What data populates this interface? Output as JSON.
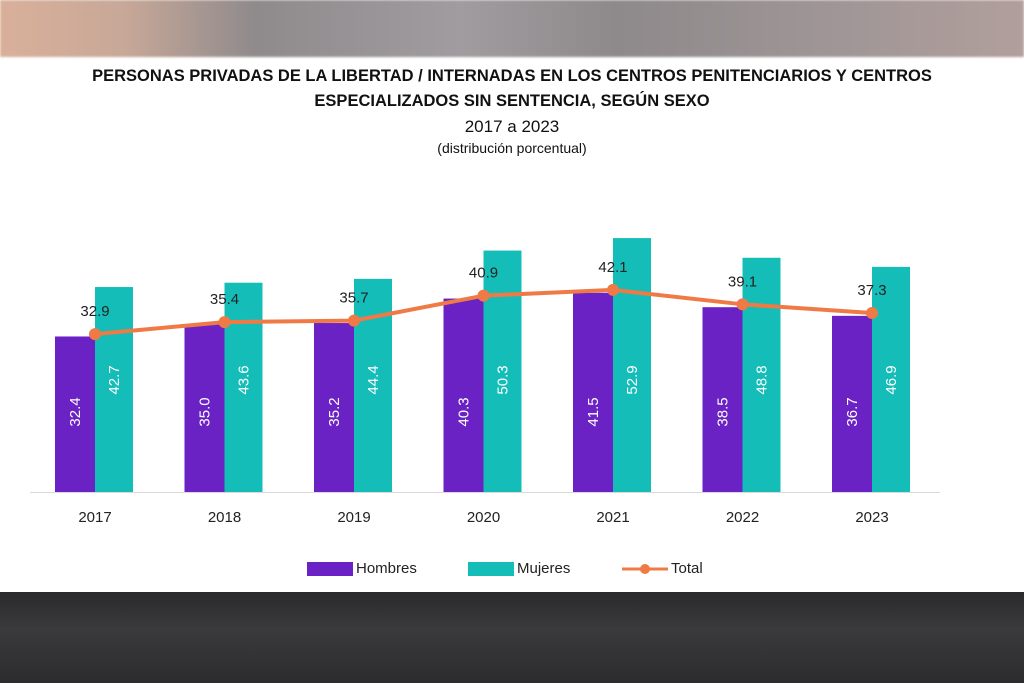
{
  "title": "PERSONAS PRIVADAS DE LA LIBERTAD / INTERNADAS EN LOS CENTROS PENITENCIARIOS Y CENTROS ESPECIALIZADOS SIN SENTENCIA, SEGÚN SEXO",
  "title_line1": "PERSONAS PRIVADAS DE LA LIBERTAD / INTERNADAS EN LOS CENTROS PENITENCIARIOS Y CENTROS",
  "title_line2": "ESPECIALIZADOS SIN SENTENCIA, SEGÚN SEXO",
  "subtitle": "2017 a 2023",
  "unit_note": "(distribución porcentual)",
  "chart_data": {
    "type": "bar",
    "categories": [
      "2017",
      "2018",
      "2019",
      "2020",
      "2021",
      "2022",
      "2023"
    ],
    "series": [
      {
        "name": "Hombres",
        "type": "bar",
        "color": "#6a22c4",
        "values": [
          32.4,
          35.0,
          35.2,
          40.3,
          41.5,
          38.5,
          36.7
        ]
      },
      {
        "name": "Mujeres",
        "type": "bar",
        "color": "#14bdb8",
        "values": [
          42.7,
          43.6,
          44.4,
          50.3,
          52.9,
          48.8,
          46.9
        ]
      },
      {
        "name": "Total",
        "type": "line",
        "color": "#f07a45",
        "values": [
          32.9,
          35.4,
          35.7,
          40.9,
          42.1,
          39.1,
          37.3
        ]
      }
    ],
    "ylim": [
      0,
      55
    ],
    "grid": false,
    "legend": "bottom",
    "data_labels": true
  }
}
